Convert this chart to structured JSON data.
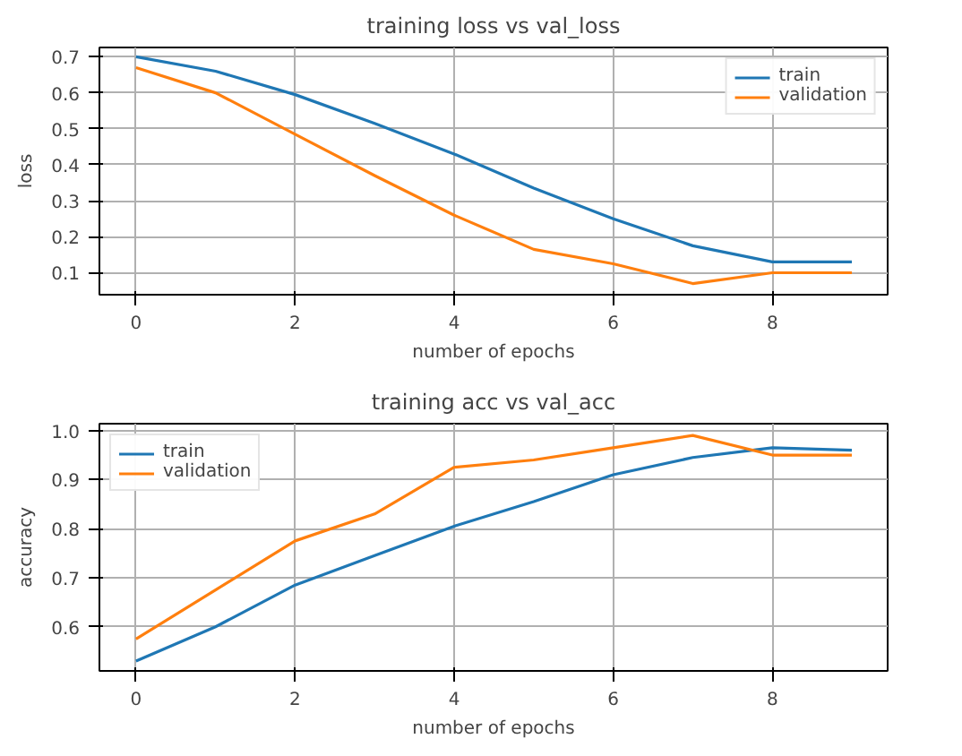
{
  "chart_data": [
    {
      "type": "line",
      "title": "training loss vs val_loss",
      "xlabel": "number of epochs",
      "ylabel": "loss",
      "x": [
        0,
        1,
        2,
        3,
        4,
        5,
        6,
        7,
        8,
        9
      ],
      "series": [
        {
          "name": "train",
          "color": "#1f77b4",
          "values": [
            0.7,
            0.66,
            0.595,
            0.515,
            0.43,
            0.335,
            0.25,
            0.175,
            0.13,
            0.13
          ]
        },
        {
          "name": "validation",
          "color": "#ff7f0e",
          "values": [
            0.67,
            0.6,
            0.485,
            0.37,
            0.26,
            0.165,
            0.125,
            0.07,
            0.1,
            0.1
          ]
        }
      ],
      "xlim": [
        -0.46,
        9.45
      ],
      "ylim": [
        0.039,
        0.726
      ],
      "xticks": [
        0,
        2,
        4,
        6,
        8
      ],
      "yticks": [
        0.1,
        0.2,
        0.3,
        0.4,
        0.5,
        0.6,
        0.7
      ],
      "grid": true,
      "legend": "top right"
    },
    {
      "type": "line",
      "title": "training acc vs val_acc",
      "xlabel": "number of epochs",
      "ylabel": "accuracy",
      "x": [
        0,
        1,
        2,
        3,
        4,
        5,
        6,
        7,
        8,
        9
      ],
      "series": [
        {
          "name": "train",
          "color": "#1f77b4",
          "values": [
            0.53,
            0.6,
            0.685,
            0.745,
            0.805,
            0.855,
            0.91,
            0.945,
            0.965,
            0.96
          ]
        },
        {
          "name": "validation",
          "color": "#ff7f0e",
          "values": [
            0.575,
            0.675,
            0.775,
            0.83,
            0.925,
            0.94,
            0.965,
            0.99,
            0.95,
            0.95
          ]
        }
      ],
      "xlim": [
        -0.46,
        9.45
      ],
      "ylim": [
        0.51,
        1.014
      ],
      "xticks": [
        0,
        2,
        4,
        6,
        8
      ],
      "yticks": [
        0.6,
        0.7,
        0.8,
        0.9,
        {
          "value": 1,
          "label": "1.0"
        }
      ],
      "grid": true,
      "legend": "top left"
    }
  ]
}
